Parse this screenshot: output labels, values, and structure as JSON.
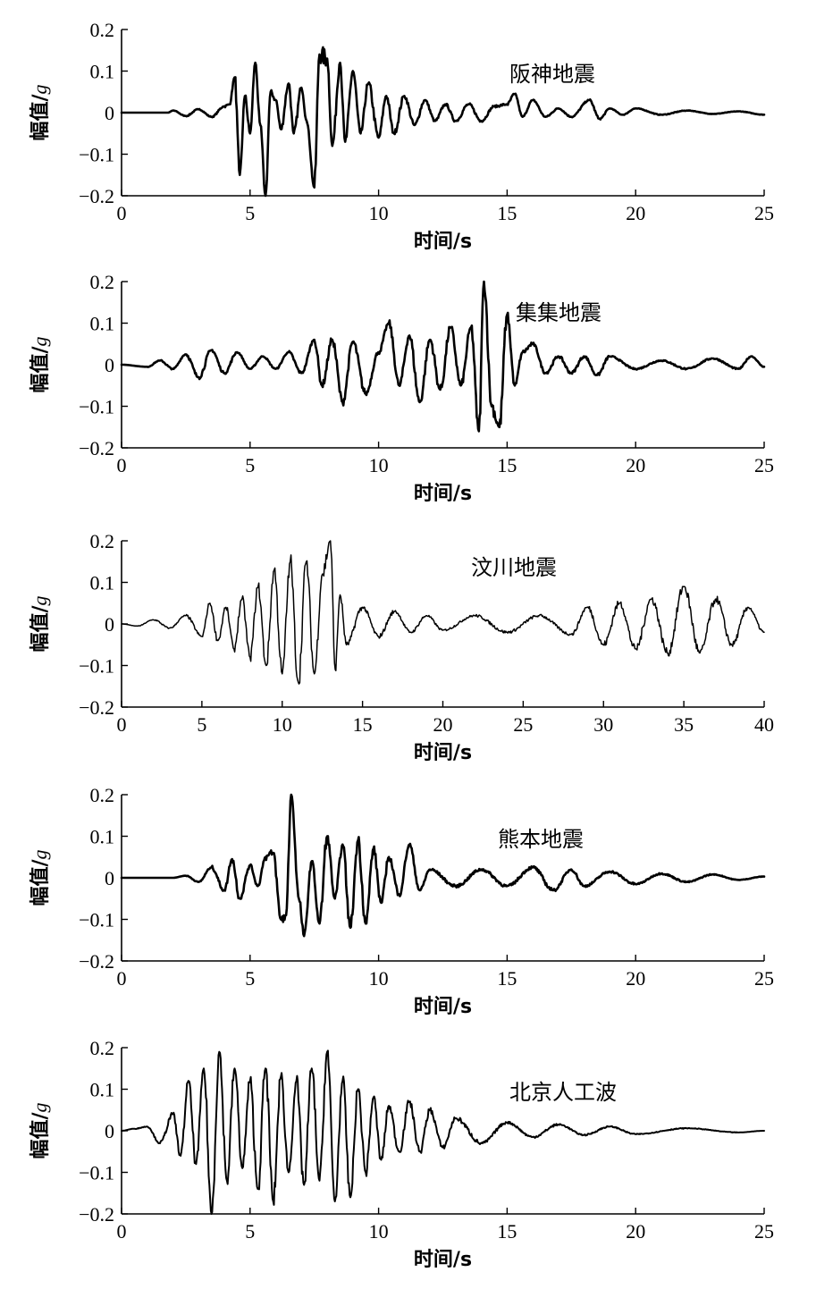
{
  "chart_data": [
    {
      "type": "line",
      "annotation": "阪神地震",
      "xlabel": "时间/s",
      "ylabel_main": "幅值/",
      "ylabel_unit": "g",
      "xlim": [
        0,
        25
      ],
      "ylim": [
        -0.2,
        0.2
      ],
      "xticks": [
        0,
        5,
        10,
        15,
        20,
        25
      ],
      "yticks": [
        -0.2,
        -0.1,
        0,
        0.1,
        0.2
      ],
      "ytick_labels": [
        "−0.2",
        "−0.1",
        "0",
        "0.1",
        "0.2"
      ],
      "grid": false,
      "x": [
        0,
        1.8,
        2.0,
        2.5,
        3.0,
        3.5,
        4.0,
        4.2,
        4.4,
        4.6,
        4.8,
        5.0,
        5.2,
        5.4,
        5.6,
        5.8,
        6.0,
        6.2,
        6.5,
        6.7,
        7.0,
        7.2,
        7.5,
        7.7,
        8.0,
        8.2,
        8.5,
        8.7,
        9.0,
        9.3,
        9.6,
        10.0,
        10.3,
        10.6,
        11.0,
        11.4,
        11.8,
        12.2,
        12.6,
        13.0,
        13.5,
        14.0,
        14.5,
        15.0,
        15.3,
        15.6,
        16.0,
        16.5,
        17.0,
        17.5,
        18.2,
        18.6,
        19.0,
        19.5,
        20.0,
        21.0,
        22.0,
        23.0,
        24.0,
        25.0
      ],
      "y": [
        0,
        0,
        0.005,
        -0.008,
        0.008,
        -0.01,
        0.015,
        0.02,
        0.085,
        -0.15,
        0.04,
        -0.05,
        0.12,
        -0.03,
        -0.2,
        0.05,
        0.03,
        -0.04,
        0.07,
        -0.05,
        0.06,
        -0.02,
        -0.18,
        0.14,
        0.13,
        -0.08,
        0.12,
        -0.07,
        0.1,
        -0.05,
        0.07,
        -0.06,
        0.04,
        -0.05,
        0.04,
        -0.03,
        0.03,
        -0.02,
        0.02,
        -0.02,
        0.02,
        -0.02,
        0.015,
        0.02,
        0.045,
        -0.01,
        0.03,
        -0.01,
        0.01,
        -0.01,
        0.03,
        -0.015,
        0.01,
        -0.005,
        0.01,
        -0.005,
        0.005,
        -0.003,
        0.003,
        -0.005
      ]
    },
    {
      "type": "line",
      "annotation": "集集地震",
      "xlabel": "时间/s",
      "ylabel_main": "幅值/",
      "ylabel_unit": "g",
      "xlim": [
        0,
        25
      ],
      "ylim": [
        -0.2,
        0.2
      ],
      "xticks": [
        0,
        5,
        10,
        15,
        20,
        25
      ],
      "yticks": [
        -0.2,
        -0.1,
        0,
        0.1,
        0.2
      ],
      "ytick_labels": [
        "−0.2",
        "−0.1",
        "0",
        "0.1",
        "0.2"
      ],
      "grid": false,
      "x": [
        0,
        1.0,
        1.5,
        2.0,
        2.5,
        3.0,
        3.5,
        4.0,
        4.5,
        5.0,
        5.5,
        6.0,
        6.5,
        7.0,
        7.5,
        7.8,
        8.2,
        8.6,
        9.0,
        9.5,
        10.0,
        10.4,
        10.8,
        11.2,
        11.6,
        12.0,
        12.4,
        12.8,
        13.2,
        13.6,
        13.9,
        14.1,
        14.4,
        14.7,
        15.0,
        15.3,
        15.6,
        16.0,
        16.5,
        17.0,
        17.5,
        18.0,
        18.5,
        19.0,
        20.0,
        21.0,
        22.0,
        23.0,
        24.0,
        24.5,
        25.0
      ],
      "y": [
        0,
        -0.005,
        0.01,
        -0.01,
        0.025,
        -0.03,
        0.035,
        -0.02,
        0.03,
        -0.01,
        0.02,
        -0.01,
        0.03,
        -0.02,
        0.06,
        -0.05,
        0.06,
        -0.09,
        0.055,
        -0.07,
        0.03,
        0.1,
        -0.05,
        0.07,
        -0.09,
        0.06,
        -0.06,
        0.09,
        -0.05,
        0.09,
        -0.16,
        0.2,
        -0.1,
        -0.15,
        0.12,
        -0.05,
        0.03,
        0.05,
        -0.02,
        0.02,
        -0.02,
        0.02,
        -0.025,
        0.02,
        -0.01,
        0.01,
        -0.01,
        0.015,
        -0.01,
        0.02,
        -0.005
      ]
    },
    {
      "type": "line",
      "annotation": "汶川地震",
      "xlabel": "时间/s",
      "ylabel_main": "幅值/",
      "ylabel_unit": "g",
      "xlim": [
        0,
        40
      ],
      "ylim": [
        -0.2,
        0.2
      ],
      "xticks": [
        0,
        5,
        10,
        15,
        20,
        25,
        30,
        35,
        40
      ],
      "yticks": [
        -0.2,
        -0.1,
        0,
        0.1,
        0.2
      ],
      "ytick_labels": [
        "−0.2",
        "−0.1",
        "0",
        "0.1",
        "0.2"
      ],
      "grid": false,
      "x": [
        0,
        1.0,
        2.0,
        3.0,
        4.0,
        5.0,
        5.5,
        6.0,
        6.5,
        7.0,
        7.5,
        8.0,
        8.5,
        9.0,
        9.5,
        10.0,
        10.5,
        11.0,
        11.5,
        12.0,
        12.5,
        13.0,
        13.3,
        13.6,
        14.0,
        15.0,
        16.0,
        17.0,
        18.0,
        19.0,
        20.0,
        22.0,
        24.0,
        26.0,
        28.0,
        29.0,
        30.0,
        31.0,
        32.0,
        33.0,
        34.0,
        35.0,
        36.0,
        37.0,
        38.0,
        39.0,
        40.0
      ],
      "y": [
        0,
        -0.005,
        0.01,
        -0.01,
        0.02,
        -0.03,
        0.05,
        -0.04,
        0.04,
        -0.06,
        0.06,
        -0.08,
        0.09,
        -0.1,
        0.13,
        -0.12,
        0.15,
        -0.14,
        0.15,
        -0.12,
        0.12,
        0.2,
        -0.11,
        0.07,
        -0.05,
        0.04,
        -0.03,
        0.03,
        -0.02,
        0.02,
        -0.015,
        0.02,
        -0.02,
        0.02,
        -0.025,
        0.04,
        -0.05,
        0.05,
        -0.06,
        0.06,
        -0.07,
        0.09,
        -0.07,
        0.06,
        -0.05,
        0.04,
        -0.02
      ]
    },
    {
      "type": "line",
      "annotation": "熊本地震",
      "xlabel": "时间/s",
      "ylabel_main": "幅值/",
      "ylabel_unit": "g",
      "xlim": [
        0,
        25
      ],
      "ylim": [
        -0.2,
        0.2
      ],
      "xticks": [
        0,
        5,
        10,
        15,
        20,
        25
      ],
      "yticks": [
        -0.2,
        -0.1,
        0,
        0.1,
        0.2
      ],
      "ytick_labels": [
        "−0.2",
        "−0.1",
        "0",
        "0.1",
        "0.2"
      ],
      "grid": false,
      "x": [
        0,
        2.0,
        2.5,
        3.0,
        3.5,
        4.0,
        4.3,
        4.6,
        5.0,
        5.3,
        5.6,
        5.9,
        6.2,
        6.4,
        6.6,
        6.9,
        7.1,
        7.4,
        7.7,
        8.0,
        8.3,
        8.6,
        8.9,
        9.2,
        9.5,
        9.8,
        10.1,
        10.4,
        10.8,
        11.2,
        11.6,
        12.0,
        13.0,
        14.0,
        15.0,
        16.0,
        16.8,
        17.5,
        18.0,
        19.0,
        20.0,
        21.0,
        22.0,
        23.0,
        24.0,
        25.0
      ],
      "y": [
        0,
        0,
        0.005,
        -0.01,
        0.025,
        -0.03,
        0.045,
        -0.05,
        0.03,
        -0.02,
        0.05,
        0.06,
        -0.1,
        -0.09,
        0.2,
        -0.05,
        -0.14,
        0.04,
        -0.11,
        0.1,
        -0.05,
        0.08,
        -0.12,
        0.09,
        -0.11,
        0.07,
        -0.06,
        0.05,
        -0.04,
        0.08,
        -0.03,
        0.02,
        -0.02,
        0.02,
        -0.02,
        0.025,
        -0.03,
        0.02,
        -0.02,
        0.015,
        -0.015,
        0.01,
        -0.01,
        0.008,
        -0.005,
        0.003
      ]
    },
    {
      "type": "line",
      "annotation": "北京人工波",
      "xlabel": "时间/s",
      "ylabel_main": "幅值/",
      "ylabel_unit": "g",
      "xlim": [
        0,
        25
      ],
      "ylim": [
        -0.2,
        0.2
      ],
      "xticks": [
        0,
        5,
        10,
        15,
        20,
        25
      ],
      "yticks": [
        -0.2,
        -0.1,
        0,
        0.1,
        0.2
      ],
      "ytick_labels": [
        "−0.2",
        "−0.1",
        "0",
        "0.1",
        "0.2"
      ],
      "grid": false,
      "x": [
        0,
        0.5,
        1.0,
        1.5,
        2.0,
        2.3,
        2.6,
        2.9,
        3.2,
        3.5,
        3.8,
        4.1,
        4.4,
        4.7,
        5.0,
        5.3,
        5.6,
        5.9,
        6.2,
        6.5,
        6.8,
        7.1,
        7.4,
        7.7,
        8.0,
        8.3,
        8.6,
        8.9,
        9.2,
        9.5,
        9.8,
        10.1,
        10.4,
        10.8,
        11.2,
        11.6,
        12.0,
        12.5,
        13.0,
        14.0,
        15.0,
        16.0,
        17.0,
        18.0,
        19.0,
        20.0,
        22.0,
        24.0,
        25.0
      ],
      "y": [
        0,
        0.005,
        0.01,
        -0.03,
        0.04,
        -0.06,
        0.12,
        -0.08,
        0.15,
        -0.2,
        0.19,
        -0.12,
        0.15,
        -0.09,
        0.12,
        -0.14,
        0.15,
        -0.17,
        0.13,
        -0.1,
        0.12,
        -0.13,
        0.15,
        -0.12,
        0.19,
        -0.17,
        0.12,
        -0.16,
        0.1,
        -0.1,
        0.08,
        -0.07,
        0.06,
        -0.05,
        0.07,
        -0.05,
        0.05,
        -0.04,
        0.03,
        -0.03,
        0.02,
        -0.015,
        0.015,
        -0.01,
        0.01,
        -0.008,
        0.006,
        -0.004,
        0
      ]
    }
  ]
}
